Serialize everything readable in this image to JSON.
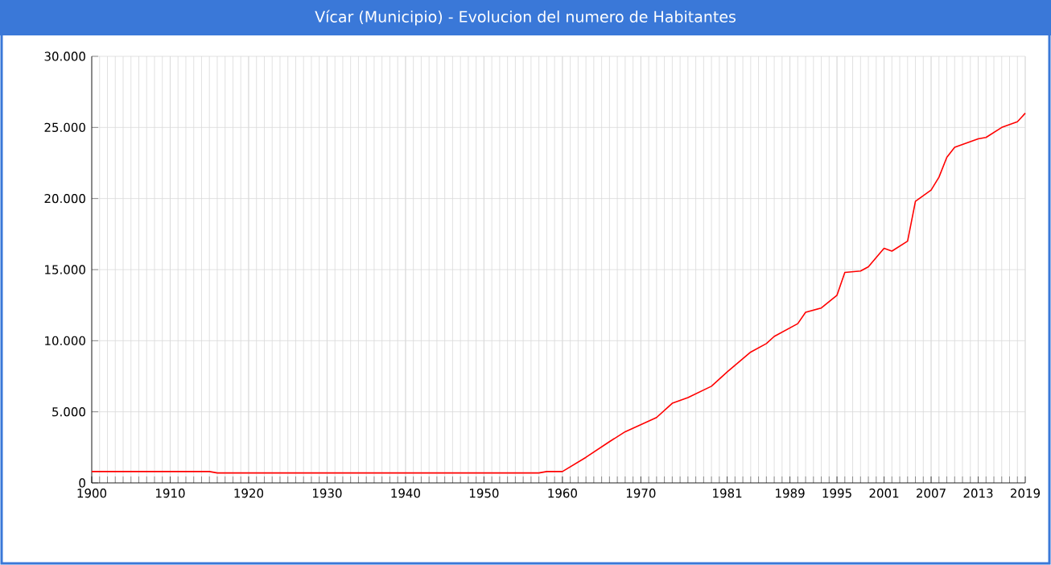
{
  "chart_data": {
    "type": "line",
    "title": "Vícar (Municipio) - Evolucion del numero de Habitantes",
    "x": [
      1900,
      1915,
      1916,
      1957,
      1958,
      1960,
      1963,
      1966,
      1968,
      1972,
      1974,
      1976,
      1979,
      1981,
      1984,
      1986,
      1987,
      1990,
      1991,
      1993,
      1995,
      1996,
      1998,
      1999,
      2001,
      2002,
      2004,
      2005,
      2007,
      2008,
      2009,
      2010,
      2013,
      2014,
      2016,
      2018,
      2019
    ],
    "series": [
      {
        "color": "#ff0000",
        "line_style": "solid",
        "values": [
          800,
          800,
          700,
          700,
          800,
          800,
          1800,
          2900,
          3600,
          4600,
          5600,
          6000,
          6800,
          7800,
          9200,
          9800,
          10300,
          11200,
          12000,
          12300,
          13200,
          14800,
          14900,
          15200,
          16500,
          16300,
          17000,
          19800,
          20600,
          21500,
          22900,
          23600,
          24200,
          24300,
          25000,
          25400,
          26000
        ]
      }
    ],
    "xlim": [
      1900,
      2019
    ],
    "xticks": [
      1900,
      1910,
      1920,
      1930,
      1940,
      1950,
      1960,
      1970,
      1981,
      1989,
      1995,
      2001,
      2007,
      2013,
      2019
    ],
    "ylim": [
      0,
      30000
    ],
    "yticks": [
      0,
      {
        "value": 5000,
        "label": "5.000"
      },
      {
        "value": 10000,
        "label": "10.000"
      },
      {
        "value": 15000,
        "label": "15.000"
      },
      {
        "value": 20000,
        "label": "20.000"
      },
      {
        "value": 25000,
        "label": "25.000"
      },
      {
        "value": 30000,
        "label": "30.000"
      }
    ],
    "grid": true
  }
}
